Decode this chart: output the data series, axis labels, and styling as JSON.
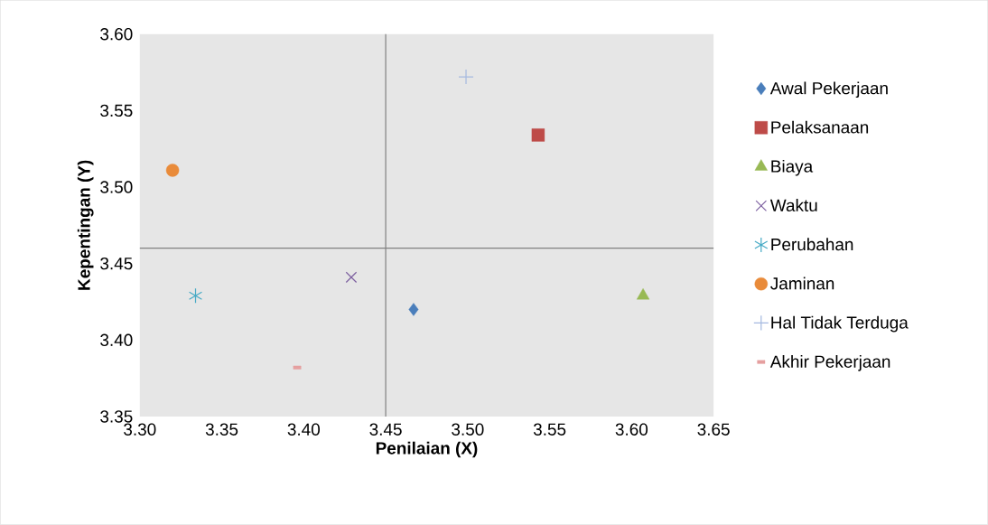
{
  "chart_data": {
    "type": "scatter",
    "xlabel": "Penilaian (X)",
    "ylabel": "Kepentingan (Y)",
    "xlim": [
      3.3,
      3.65
    ],
    "ylim": [
      3.35,
      3.6
    ],
    "xticks": [
      {
        "value": 3.3,
        "label": "3.30"
      },
      {
        "value": 3.35,
        "label": "3.35"
      },
      {
        "value": 3.4,
        "label": "3.40"
      },
      {
        "value": 3.45,
        "label": "3.45"
      },
      {
        "value": 3.5,
        "label": "3.50"
      },
      {
        "value": 3.55,
        "label": "3.55"
      },
      {
        "value": 3.6,
        "label": "3.60"
      },
      {
        "value": 3.65,
        "label": "3.65"
      }
    ],
    "yticks": [
      {
        "value": 3.35,
        "label": "3.35"
      },
      {
        "value": 3.4,
        "label": "3.40"
      },
      {
        "value": 3.45,
        "label": "3.45"
      },
      {
        "value": 3.5,
        "label": "3.50"
      },
      {
        "value": 3.55,
        "label": "3.55"
      },
      {
        "value": 3.6,
        "label": "3.60"
      }
    ],
    "grid": false,
    "legend": "right",
    "ref_lines": [
      {
        "axis": "x",
        "value": 3.45,
        "color": "#808080"
      },
      {
        "axis": "y",
        "value": 3.46,
        "color": "#808080"
      }
    ],
    "series": [
      {
        "name": "Awal Pekerjaan",
        "color": "#4a7ebb",
        "marker": "diamond",
        "x": [
          3.467
        ],
        "values": [
          3.42
        ]
      },
      {
        "name": "Pelaksanaan",
        "color": "#be4b48",
        "marker": "square",
        "x": [
          3.543
        ],
        "values": [
          3.534
        ]
      },
      {
        "name": "Biaya",
        "color": "#98b954",
        "marker": "triangle",
        "x": [
          3.607
        ],
        "values": [
          3.429
        ]
      },
      {
        "name": "Waktu",
        "color": "#7d60a0",
        "marker": "cross",
        "x": [
          3.429
        ],
        "values": [
          3.441
        ]
      },
      {
        "name": "Perubahan",
        "color": "#46aac5",
        "x": [
          3.334
        ],
        "values": [
          3.429
        ]
      },
      {
        "name": "Jaminan",
        "color": "#e98b3a",
        "marker": "circle",
        "x": [
          3.32
        ],
        "values": [
          3.511
        ]
      },
      {
        "name": "Hal Tidak Terduga",
        "color": "#a5b9e0",
        "marker": "plus",
        "x": [
          3.499
        ],
        "values": [
          3.572
        ]
      },
      {
        "name": "Akhir Pekerjaan",
        "color": "#e6a0a0",
        "x": [
          3.396
        ],
        "values": [
          3.382
        ]
      }
    ]
  }
}
